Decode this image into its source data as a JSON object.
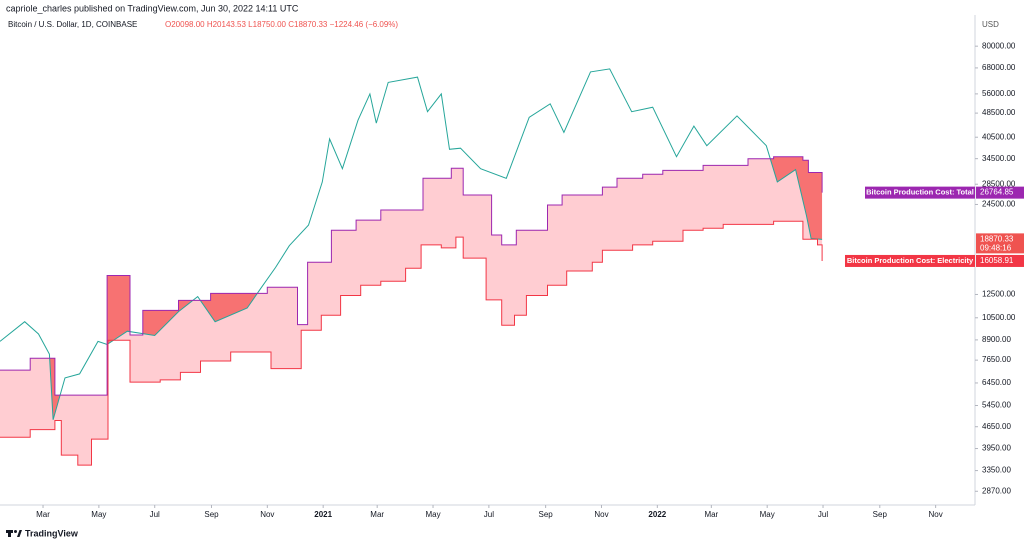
{
  "header": {
    "published": "capriole_charles published on TradingView.com, Jun 30, 2022 14:11 UTC",
    "symbol": "Bitcoin / U.S. Dollar, 1D, COINBASE",
    "ohlc": "O20098.00 H20143.53 L18750.00 C18870.33 −1224.46 (−6.09%)"
  },
  "footer": "TradingView",
  "chart_data": {
    "type": "line",
    "log_scale": true,
    "grid": false,
    "currency": "USD",
    "xlim": [
      "2020-01-14",
      "2022-12-14"
    ],
    "ylim": [
      2590,
      101000
    ],
    "yticks": [
      {
        "value": 80000,
        "label": "80000.00"
      },
      {
        "value": 68000,
        "label": "68000.00"
      },
      {
        "value": 56000,
        "label": "56000.00"
      },
      {
        "value": 48500,
        "label": "48500.00"
      },
      {
        "value": 40500,
        "label": "40500.00"
      },
      {
        "value": 34500,
        "label": "34500.00"
      },
      {
        "value": 28500,
        "label": "28500.00"
      },
      {
        "value": 24500,
        "label": "24500.00"
      },
      {
        "value": 12500,
        "label": "12500.00"
      },
      {
        "value": 10500,
        "label": "10500.00"
      },
      {
        "value": 8900,
        "label": "8900.00"
      },
      {
        "value": 7650,
        "label": "7650.00"
      },
      {
        "value": 6450,
        "label": "6450.00"
      },
      {
        "value": 5450,
        "label": "5450.00"
      },
      {
        "value": 4650,
        "label": "4650.00"
      },
      {
        "value": 3950,
        "label": "3950.00"
      },
      {
        "value": 3350,
        "label": "3350.00"
      },
      {
        "value": 2870,
        "label": "2870.00"
      }
    ],
    "xticks": [
      {
        "value": "2020-03-01",
        "label": "Mar"
      },
      {
        "value": "2020-05-01",
        "label": "May"
      },
      {
        "value": "2020-07-01",
        "label": "Jul"
      },
      {
        "value": "2020-09-01",
        "label": "Sep"
      },
      {
        "value": "2020-11-01",
        "label": "Nov"
      },
      {
        "value": "2021-01-01",
        "label": "2021"
      },
      {
        "value": "2021-03-01",
        "label": "Mar"
      },
      {
        "value": "2021-05-01",
        "label": "May"
      },
      {
        "value": "2021-07-01",
        "label": "Jul"
      },
      {
        "value": "2021-09-01",
        "label": "Sep"
      },
      {
        "value": "2021-11-01",
        "label": "Nov"
      },
      {
        "value": "2022-01-01",
        "label": "2022"
      },
      {
        "value": "2022-03-01",
        "label": "Mar"
      },
      {
        "value": "2022-05-01",
        "label": "May"
      },
      {
        "value": "2022-07-01",
        "label": "Jul"
      },
      {
        "value": "2022-09-01",
        "label": "Sep"
      },
      {
        "value": "2022-11-01",
        "label": "Nov"
      }
    ],
    "price": {
      "color": "#26a69a",
      "label_color": "#ef5350",
      "countdown": "09:48:16",
      "x": [
        "2020-01-14",
        "2020-02-10",
        "2020-02-25",
        "2020-03-08",
        "2020-03-12",
        "2020-03-25",
        "2020-04-10",
        "2020-04-30",
        "2020-05-10",
        "2020-06-01",
        "2020-07-01",
        "2020-07-27",
        "2020-08-17",
        "2020-09-05",
        "2020-10-10",
        "2020-10-25",
        "2020-11-10",
        "2020-11-25",
        "2020-12-16",
        "2020-12-31",
        "2021-01-08",
        "2021-01-22",
        "2021-02-08",
        "2021-02-21",
        "2021-02-28",
        "2021-03-13",
        "2021-04-14",
        "2021-04-25",
        "2021-05-10",
        "2021-05-19",
        "2021-05-31",
        "2021-06-22",
        "2021-07-20",
        "2021-08-14",
        "2021-09-06",
        "2021-09-21",
        "2021-10-20",
        "2021-11-10",
        "2021-12-04",
        "2021-12-27",
        "2022-01-22",
        "2022-02-10",
        "2022-02-24",
        "2022-03-29",
        "2022-04-30",
        "2022-05-12",
        "2022-06-01",
        "2022-06-13",
        "2022-06-18",
        "2022-06-30"
      ],
      "values": [
        8800,
        10200,
        9300,
        8000,
        4900,
        6700,
        6900,
        8800,
        8600,
        9500,
        9200,
        11000,
        12300,
        10200,
        11300,
        13100,
        15300,
        18000,
        21000,
        29000,
        40000,
        32000,
        46000,
        56000,
        45000,
        61000,
        63500,
        49000,
        56000,
        37000,
        37300,
        32000,
        29800,
        47000,
        52000,
        42000,
        66000,
        67500,
        49000,
        50700,
        35000,
        44000,
        38000,
        47500,
        38000,
        29000,
        31800,
        22500,
        19000,
        18870.33
      ]
    },
    "band_color": "#ffcdd2",
    "deficit_color": "#f77272",
    "series": [
      {
        "name": "Bitcoin Production Cost: Total",
        "color": "#9c27b0",
        "x": [
          "2020-01-14",
          "2020-02-16",
          "2020-03-14",
          "2020-05-10",
          "2020-06-04",
          "2020-06-18",
          "2020-07-27",
          "2020-08-31",
          "2020-11-01",
          "2020-12-04",
          "2020-12-15",
          "2021-01-10",
          "2021-02-06",
          "2021-03-05",
          "2021-04-20",
          "2021-05-21",
          "2021-06-03",
          "2021-07-04",
          "2021-07-15",
          "2021-07-31",
          "2021-09-03",
          "2021-09-19",
          "2021-11-02",
          "2021-11-18",
          "2021-12-16",
          "2022-01-07",
          "2022-02-20",
          "2022-04-10",
          "2022-05-08",
          "2022-06-09",
          "2022-06-15",
          "2022-06-30"
        ],
        "values": [
          7100,
          7760,
          5890,
          14400,
          9230,
          11100,
          11960,
          12600,
          13200,
          9980,
          15900,
          20200,
          21800,
          23500,
          29800,
          32100,
          26300,
          19500,
          18100,
          20200,
          24400,
          26300,
          27900,
          29800,
          30700,
          31600,
          32800,
          34500,
          35000,
          34100,
          31100,
          26764.85
        ]
      },
      {
        "name": "Bitcoin Production Cost: Electricity",
        "color": "#f23645",
        "x": [
          "2020-01-14",
          "2020-02-16",
          "2020-03-14",
          "2020-03-21",
          "2020-04-08",
          "2020-04-23",
          "2020-05-11",
          "2020-06-04",
          "2020-07-07",
          "2020-07-29",
          "2020-08-20",
          "2020-09-22",
          "2020-11-05",
          "2020-12-08",
          "2020-12-30",
          "2021-01-20",
          "2021-02-11",
          "2021-03-05",
          "2021-04-01",
          "2021-04-18",
          "2021-05-10",
          "2021-05-26",
          "2021-06-03",
          "2021-06-28",
          "2021-07-15",
          "2021-07-29",
          "2021-08-11",
          "2021-09-03",
          "2021-09-24",
          "2021-10-22",
          "2021-11-02",
          "2021-12-05",
          "2021-12-27",
          "2022-01-29",
          "2022-02-20",
          "2022-03-14",
          "2022-05-08",
          "2022-06-09",
          "2022-06-25",
          "2022-06-30"
        ],
        "values": [
          4300,
          4550,
          4870,
          3760,
          3490,
          4240,
          8870,
          6490,
          6600,
          6980,
          7600,
          8130,
          7180,
          9570,
          10700,
          12400,
          13400,
          13800,
          15200,
          18100,
          17700,
          19200,
          16400,
          12000,
          9930,
          10700,
          12400,
          13400,
          14900,
          15900,
          17400,
          18100,
          18600,
          20200,
          20500,
          21100,
          21600,
          18900,
          18100,
          16058.91
        ]
      }
    ]
  }
}
